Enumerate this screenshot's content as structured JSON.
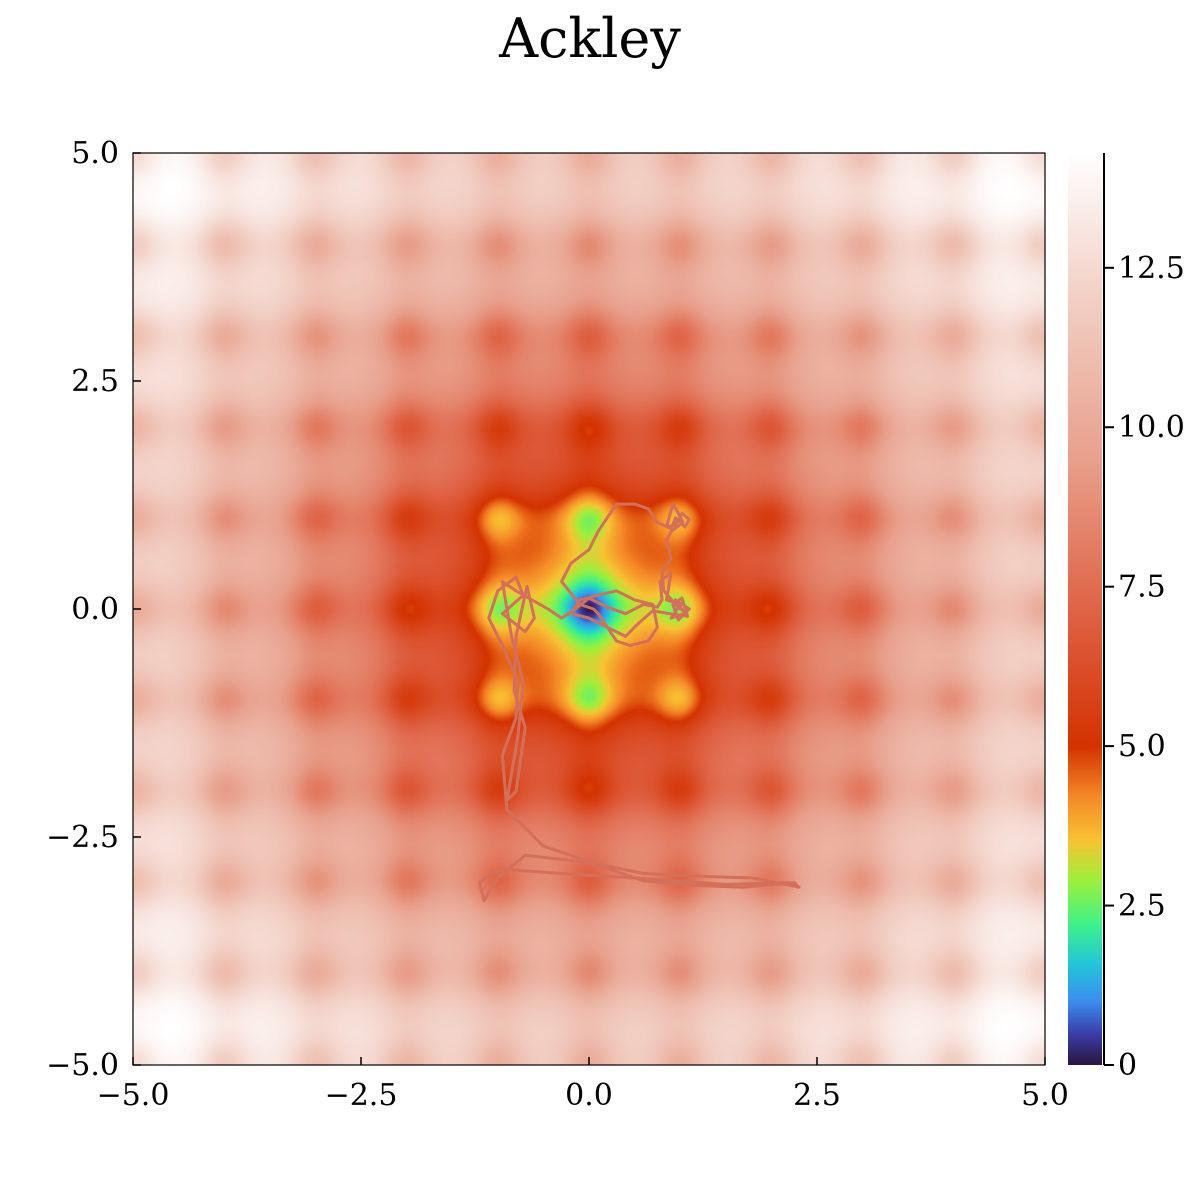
{
  "chart_data": {
    "type": "heatmap",
    "title": "Ackley",
    "function": "ackley",
    "xlabel": "",
    "ylabel": "",
    "xlim": [
      -5.0,
      5.0
    ],
    "ylim": [
      -5.0,
      5.0
    ],
    "x_ticks": [
      -5.0,
      -2.5,
      0.0,
      2.5,
      5.0
    ],
    "y_ticks": [
      -5.0,
      -2.5,
      0.0,
      2.5,
      5.0
    ],
    "x_tick_labels": [
      "−5.0",
      "−2.5",
      "0.0",
      "2.5",
      "5.0"
    ],
    "y_tick_labels": [
      "−5.0",
      "−2.5",
      "0.0",
      "2.5",
      "5.0"
    ],
    "grid": false,
    "colorbar": {
      "range": [
        0,
        14.3
      ],
      "ticks": [
        0,
        2.5,
        5.0,
        7.5,
        10.0,
        12.5
      ],
      "tick_labels": [
        "0",
        "2.5",
        "5.0",
        "7.5",
        "10.0",
        "12.5"
      ],
      "stops": [
        {
          "v": 0.0,
          "c": "#2a1540"
        },
        {
          "v": 0.5,
          "c": "#3a3fa8"
        },
        {
          "v": 1.0,
          "c": "#3b8ef0"
        },
        {
          "v": 1.6,
          "c": "#22c8d8"
        },
        {
          "v": 2.2,
          "c": "#3ef28a"
        },
        {
          "v": 2.9,
          "c": "#9ef03a"
        },
        {
          "v": 3.5,
          "c": "#f7c532"
        },
        {
          "v": 4.2,
          "c": "#f58a28"
        },
        {
          "v": 5.0,
          "c": "#d43200"
        },
        {
          "v": 7.0,
          "c": "#df6042"
        },
        {
          "v": 9.5,
          "c": "#e8a08c"
        },
        {
          "v": 12.0,
          "c": "#f2cfc4"
        },
        {
          "v": 14.3,
          "c": "#ffffff"
        }
      ]
    },
    "path": {
      "color": "#d4705a",
      "points": [
        [
          2.3,
          -3.05
        ],
        [
          2.2,
          -3.0
        ],
        [
          1.5,
          -3.02
        ],
        [
          0.5,
          -2.95
        ],
        [
          -0.3,
          -2.9
        ],
        [
          -1.0,
          -2.85
        ],
        [
          -1.2,
          -3.0
        ],
        [
          -1.15,
          -3.2
        ],
        [
          -1.0,
          -2.95
        ],
        [
          -0.7,
          -2.7
        ],
        [
          0.0,
          -2.78
        ],
        [
          0.6,
          -2.98
        ],
        [
          1.1,
          -3.03
        ],
        [
          1.7,
          -3.05
        ],
        [
          2.25,
          -3.0
        ],
        [
          2.3,
          -3.05
        ],
        [
          1.8,
          -2.95
        ],
        [
          1.2,
          -2.93
        ],
        [
          0.6,
          -2.9
        ],
        [
          0.1,
          -2.8
        ],
        [
          -0.5,
          -2.6
        ],
        [
          -0.9,
          -2.2
        ],
        [
          -0.95,
          -1.6
        ],
        [
          -0.8,
          -1.2
        ],
        [
          -0.78,
          -0.8
        ],
        [
          -0.95,
          -0.4
        ],
        [
          -1.1,
          -0.1
        ],
        [
          -1.0,
          0.2
        ],
        [
          -0.8,
          0.35
        ],
        [
          -0.72,
          0.15
        ],
        [
          -0.95,
          -0.05
        ],
        [
          -0.7,
          -0.25
        ],
        [
          -0.6,
          -0.1
        ],
        [
          -0.68,
          0.25
        ],
        [
          -0.8,
          -0.3
        ],
        [
          -0.82,
          -0.9
        ],
        [
          -0.7,
          -1.3
        ],
        [
          -0.8,
          -2.0
        ],
        [
          -0.9,
          -2.1
        ],
        [
          -0.78,
          -1.4
        ],
        [
          -0.72,
          -0.8
        ],
        [
          -0.85,
          -0.3
        ],
        [
          -0.95,
          0.3
        ],
        [
          -0.8,
          0.2
        ],
        [
          -0.45,
          0.0
        ],
        [
          -0.3,
          -0.1
        ],
        [
          -0.15,
          0.0
        ],
        [
          0.0,
          0.12
        ],
        [
          0.2,
          0.02
        ],
        [
          0.4,
          -0.05
        ],
        [
          0.6,
          0.05
        ],
        [
          0.75,
          0.02
        ],
        [
          0.8,
          0.1
        ],
        [
          0.78,
          0.3
        ],
        [
          0.9,
          0.4
        ],
        [
          0.85,
          0.1
        ],
        [
          1.0,
          0.05
        ],
        [
          0.9,
          -0.1
        ],
        [
          1.05,
          -0.05
        ],
        [
          0.95,
          0.1
        ],
        [
          1.1,
          0.0
        ],
        [
          0.98,
          -0.12
        ],
        [
          0.92,
          0.05
        ],
        [
          1.02,
          0.12
        ],
        [
          1.08,
          -0.08
        ],
        [
          0.88,
          -0.05
        ],
        [
          0.7,
          -0.02
        ],
        [
          0.55,
          -0.15
        ],
        [
          0.4,
          -0.3
        ],
        [
          0.2,
          -0.2
        ],
        [
          0.0,
          -0.1
        ],
        [
          -0.2,
          -0.05
        ],
        [
          -0.1,
          0.1
        ],
        [
          0.1,
          0.15
        ],
        [
          0.3,
          0.2
        ],
        [
          0.5,
          0.1
        ],
        [
          0.7,
          0.05
        ],
        [
          0.75,
          -0.2
        ],
        [
          0.65,
          -0.35
        ],
        [
          0.45,
          -0.4
        ],
        [
          0.3,
          -0.35
        ],
        [
          0.2,
          -0.2
        ],
        [
          0.1,
          -0.05
        ],
        [
          0.05,
          0.0
        ],
        [
          -0.1,
          0.05
        ],
        [
          -0.3,
          0.3
        ],
        [
          -0.2,
          0.5
        ],
        [
          0.0,
          0.65
        ],
        [
          0.1,
          0.85
        ],
        [
          0.2,
          1.0
        ],
        [
          0.3,
          1.15
        ],
        [
          0.5,
          1.15
        ],
        [
          0.65,
          1.1
        ],
        [
          0.75,
          0.95
        ],
        [
          0.9,
          0.88
        ],
        [
          0.95,
          1.0
        ],
        [
          1.05,
          0.9
        ],
        [
          1.1,
          0.98
        ],
        [
          1.02,
          1.05
        ],
        [
          0.95,
          0.92
        ],
        [
          0.85,
          0.9
        ],
        [
          0.92,
          1.15
        ],
        [
          0.98,
          1.05
        ],
        [
          1.03,
          0.95
        ],
        [
          0.9,
          0.85
        ],
        [
          0.85,
          0.75
        ],
        [
          0.9,
          0.55
        ],
        [
          0.8,
          0.4
        ],
        [
          0.82,
          0.2
        ],
        [
          0.95,
          0.05
        ],
        [
          1.0,
          0.0
        ]
      ]
    }
  }
}
